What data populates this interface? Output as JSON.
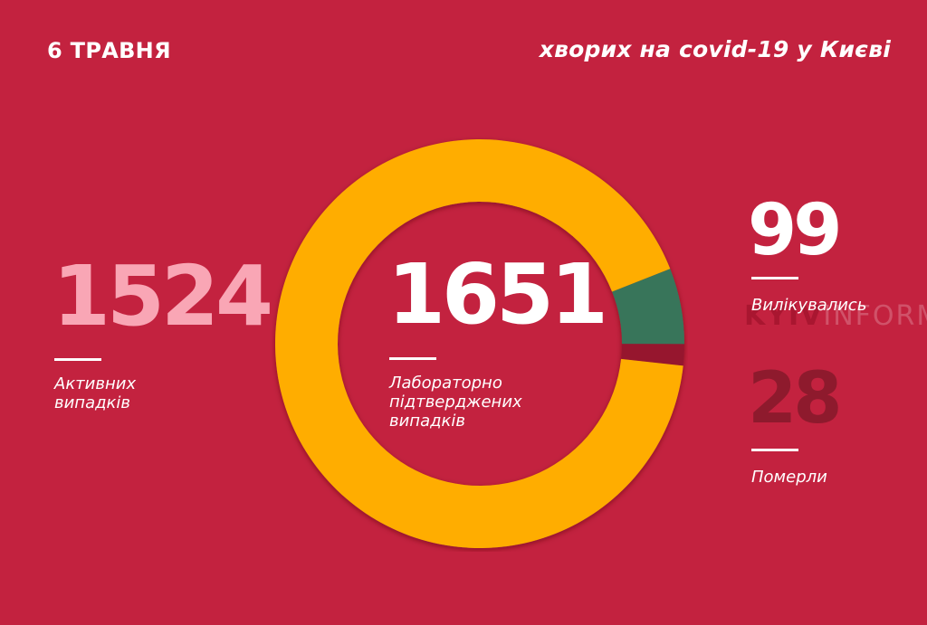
{
  "header": {
    "date": "6 ТРАВНЯ",
    "subtitle": "хворих на covid-19 у Києві"
  },
  "stats": {
    "active": {
      "value": "1524",
      "label_line1": "Активних",
      "label_line2": "випадків"
    },
    "total": {
      "value": "1651",
      "label_line1": "Лабораторно",
      "label_line2": "підтверджених",
      "label_line3": "випадків"
    },
    "recovered": {
      "value": "99",
      "label": "Вилікувались"
    },
    "deaths": {
      "value": "28",
      "label": "Померли"
    }
  },
  "watermark": {
    "bold": "KYIV",
    "light": "INFORM"
  },
  "colors": {
    "background": "#C3223F",
    "active": "#FFAD00",
    "recovered": "#37755A",
    "deaths": "#96182F",
    "active_text": "#F9A6B5",
    "deaths_text": "#8E1A2D"
  },
  "chart_data": {
    "type": "pie",
    "subtype": "donut",
    "title": "хворих на covid-19 у Києві",
    "subtitle": "6 ТРАВНЯ",
    "center_label": "1651 Лабораторно підтверджених випадків",
    "categories": [
      "Активних випадків",
      "Вилікувались",
      "Померли"
    ],
    "values": [
      1524,
      99,
      28
    ],
    "total": 1651,
    "colors": [
      "#FFAD00",
      "#37755A",
      "#96182F"
    ],
    "legend": "none (values labeled beside chart)"
  }
}
